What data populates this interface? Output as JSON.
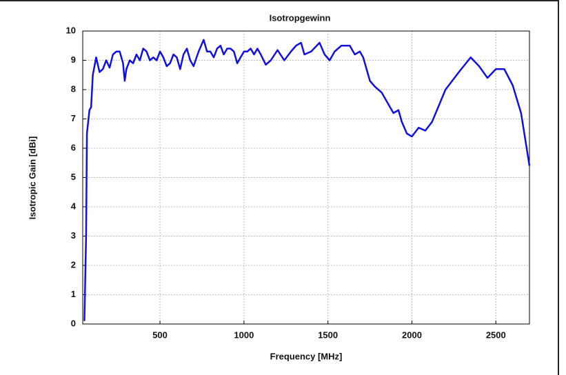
{
  "chart_data": {
    "type": "line",
    "title": "Isotropgewinn",
    "xlabel": "Frequency [MHz]",
    "ylabel": "Isotropic Gain [dBi]",
    "x": [
      50,
      60,
      65,
      80,
      90,
      100,
      120,
      140,
      160,
      180,
      200,
      220,
      240,
      260,
      280,
      290,
      300,
      320,
      340,
      360,
      380,
      400,
      420,
      440,
      460,
      480,
      500,
      520,
      540,
      560,
      580,
      600,
      620,
      640,
      660,
      680,
      700,
      730,
      760,
      780,
      800,
      820,
      840,
      860,
      880,
      900,
      920,
      940,
      960,
      980,
      1000,
      1020,
      1040,
      1060,
      1080,
      1100,
      1130,
      1160,
      1200,
      1240,
      1280,
      1310,
      1340,
      1360,
      1400,
      1450,
      1480,
      1510,
      1540,
      1580,
      1630,
      1660,
      1690,
      1710,
      1730,
      1750,
      1780,
      1820,
      1860,
      1890,
      1920,
      1940,
      1970,
      2000,
      2040,
      2080,
      2120,
      2200,
      2280,
      2350,
      2400,
      2450,
      2500,
      2550,
      2600,
      2650,
      2700
    ],
    "series": [
      {
        "name": "Isotropic Gain",
        "color": "#1010e0",
        "values": [
          0.1,
          3,
          6.5,
          7.3,
          7.4,
          8.5,
          9.1,
          8.6,
          8.7,
          9.0,
          8.75,
          9.2,
          9.3,
          9.3,
          8.9,
          8.3,
          8.7,
          9.0,
          8.9,
          9.2,
          9.0,
          9.4,
          9.3,
          9.0,
          9.1,
          9.0,
          9.3,
          9.1,
          8.8,
          8.9,
          9.2,
          9.1,
          8.7,
          9.2,
          9.4,
          9.0,
          8.8,
          9.3,
          9.7,
          9.3,
          9.3,
          9.1,
          9.4,
          9.5,
          9.2,
          9.4,
          9.4,
          9.3,
          8.9,
          9.1,
          9.3,
          9.3,
          9.4,
          9.2,
          9.4,
          9.2,
          8.85,
          9.0,
          9.35,
          9.0,
          9.3,
          9.5,
          9.6,
          9.2,
          9.3,
          9.6,
          9.2,
          9.0,
          9.3,
          9.5,
          9.5,
          9.2,
          9.3,
          9.1,
          8.7,
          8.3,
          8.1,
          7.9,
          7.5,
          7.2,
          7.3,
          6.9,
          6.5,
          6.4,
          6.7,
          6.6,
          6.9,
          8.0,
          8.6,
          9.1,
          8.8,
          8.4,
          8.7,
          8.7,
          8.15,
          7.2,
          5.4
        ]
      }
    ],
    "xlim": [
      40,
      2700
    ],
    "xticks": [
      500,
      1000,
      1500,
      2000,
      2500
    ],
    "ylim": [
      0,
      10
    ],
    "yticks": [
      0,
      1,
      2,
      3,
      4,
      5,
      6,
      7,
      8,
      9,
      10
    ],
    "grid": true
  }
}
